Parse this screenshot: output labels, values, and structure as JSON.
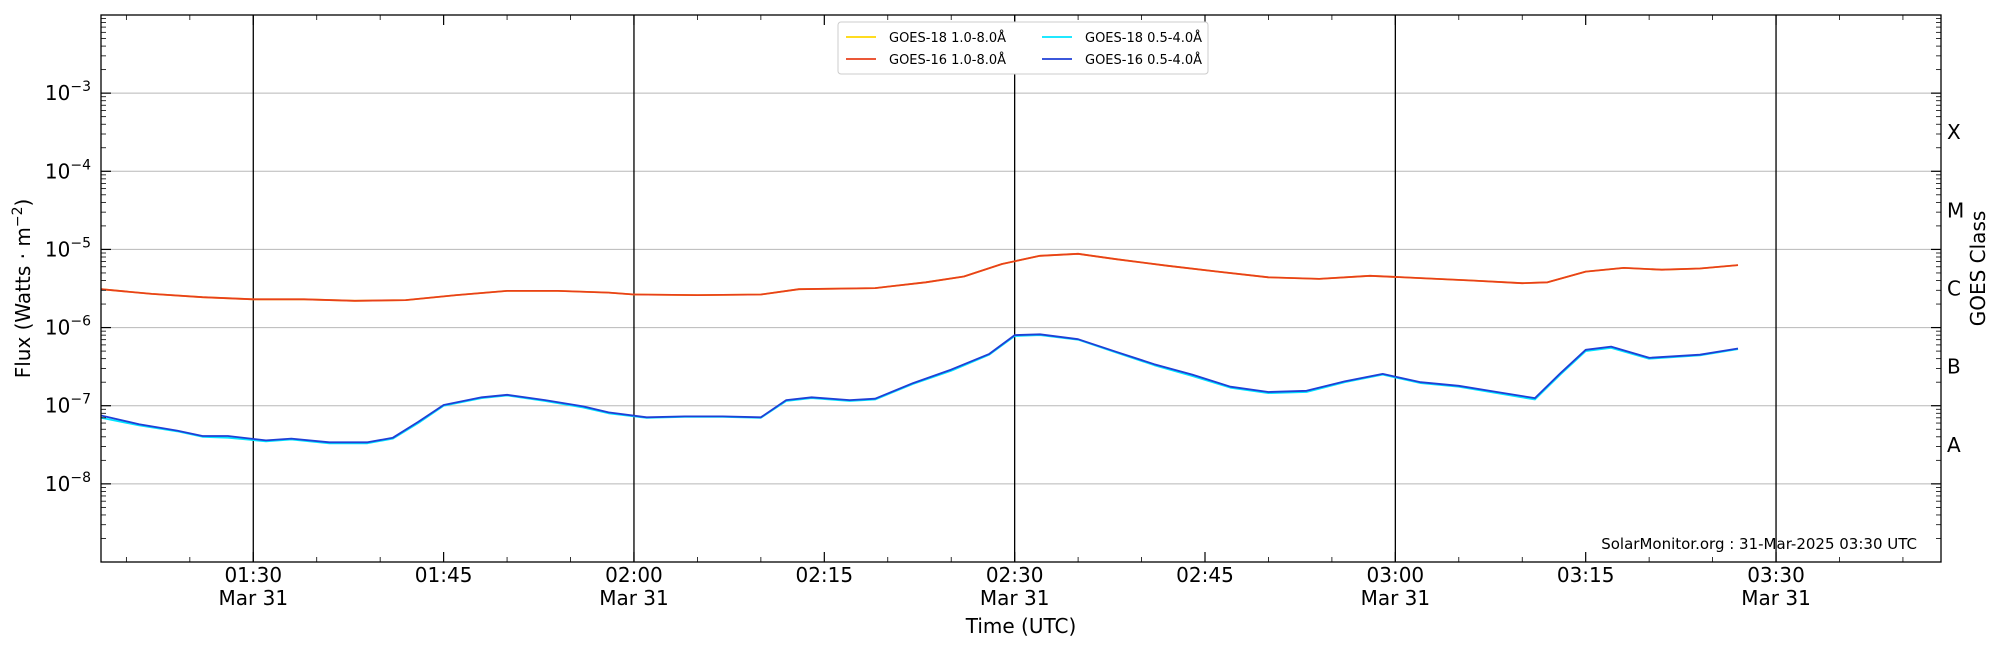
{
  "chart_data": {
    "type": "line",
    "xlabel": "Time (UTC)",
    "ylabel_main": "Flux (Watts · m",
    "ylabel_sup": "−2",
    "ylabel_tail": ")",
    "ylabel_right": "GOES Class",
    "yscale": "log",
    "xlim": [
      "01:18",
      "03:43"
    ],
    "ylim": [
      1e-09,
      0.01
    ],
    "x_ticks": [
      {
        "t": "01:30",
        "label": "01:30",
        "sub": "Mar 31"
      },
      {
        "t": "01:45",
        "label": "01:45",
        "sub": ""
      },
      {
        "t": "02:00",
        "label": "02:00",
        "sub": "Mar 31"
      },
      {
        "t": "02:15",
        "label": "02:15",
        "sub": ""
      },
      {
        "t": "02:30",
        "label": "02:30",
        "sub": "Mar 31"
      },
      {
        "t": "02:45",
        "label": "02:45",
        "sub": ""
      },
      {
        "t": "03:00",
        "label": "03:00",
        "sub": "Mar 31"
      },
      {
        "t": "03:15",
        "label": "03:15",
        "sub": ""
      },
      {
        "t": "03:30",
        "label": "03:30",
        "sub": "Mar 31"
      }
    ],
    "y_ticks": [
      {
        "v": 1e-08,
        "base": "10",
        "exp": "−8"
      },
      {
        "v": 1e-07,
        "base": "10",
        "exp": "−7"
      },
      {
        "v": 1e-06,
        "base": "10",
        "exp": "−6"
      },
      {
        "v": 1e-05,
        "base": "10",
        "exp": "−5"
      },
      {
        "v": 0.0001,
        "base": "10",
        "exp": "−4"
      },
      {
        "v": 0.001,
        "base": "10",
        "exp": "−3"
      }
    ],
    "goes_classes": [
      {
        "label": "A",
        "v": 3.16e-08
      },
      {
        "label": "B",
        "v": 3.16e-07
      },
      {
        "label": "C",
        "v": 3.16e-06
      },
      {
        "label": "M",
        "v": 3.16e-05
      },
      {
        "label": "X",
        "v": 0.000316
      }
    ],
    "vlines": [
      "01:30",
      "02:00",
      "02:30",
      "03:00",
      "03:30"
    ],
    "grid": true,
    "legend_position": "top-center",
    "credit": "SolarMonitor.org : 31-Mar-2025 03:30 UTC",
    "series": [
      {
        "name": "GOES-18 1.0-8.0Å",
        "color": "#ffd700",
        "points": [
          [
            "01:18",
            3.1e-06
          ],
          [
            "01:22",
            2.7e-06
          ],
          [
            "01:26",
            2.45e-06
          ],
          [
            "01:30",
            2.3e-06
          ],
          [
            "01:34",
            2.3e-06
          ],
          [
            "01:38",
            2.2e-06
          ],
          [
            "01:42",
            2.25e-06
          ],
          [
            "01:46",
            2.6e-06
          ],
          [
            "01:50",
            2.95e-06
          ],
          [
            "01:54",
            2.95e-06
          ],
          [
            "01:58",
            2.8e-06
          ],
          [
            "02:00",
            2.65e-06
          ],
          [
            "02:05",
            2.6e-06
          ],
          [
            "02:10",
            2.65e-06
          ],
          [
            "02:13",
            3.1e-06
          ],
          [
            "02:19",
            3.2e-06
          ],
          [
            "02:23",
            3.8e-06
          ],
          [
            "02:26",
            4.5e-06
          ],
          [
            "02:29",
            6.5e-06
          ],
          [
            "02:32",
            8.3e-06
          ],
          [
            "02:35",
            8.8e-06
          ],
          [
            "02:38",
            7.5e-06
          ],
          [
            "02:42",
            6.2e-06
          ],
          [
            "02:46",
            5.2e-06
          ],
          [
            "02:50",
            4.4e-06
          ],
          [
            "02:54",
            4.2e-06
          ],
          [
            "02:58",
            4.6e-06
          ],
          [
            "03:02",
            4.3e-06
          ],
          [
            "03:06",
            4e-06
          ],
          [
            "03:10",
            3.7e-06
          ],
          [
            "03:12",
            3.8e-06
          ],
          [
            "03:15",
            5.2e-06
          ],
          [
            "03:18",
            5.8e-06
          ],
          [
            "03:21",
            5.5e-06
          ],
          [
            "03:24",
            5.7e-06
          ],
          [
            "03:27",
            6.3e-06
          ]
        ]
      },
      {
        "name": "GOES-16 1.0-8.0Å",
        "color": "#e8401c",
        "points": [
          [
            "01:18",
            3.1e-06
          ],
          [
            "01:22",
            2.7e-06
          ],
          [
            "01:26",
            2.45e-06
          ],
          [
            "01:30",
            2.3e-06
          ],
          [
            "01:34",
            2.3e-06
          ],
          [
            "01:38",
            2.2e-06
          ],
          [
            "01:42",
            2.25e-06
          ],
          [
            "01:46",
            2.6e-06
          ],
          [
            "01:50",
            2.95e-06
          ],
          [
            "01:54",
            2.95e-06
          ],
          [
            "01:58",
            2.8e-06
          ],
          [
            "02:00",
            2.65e-06
          ],
          [
            "02:05",
            2.6e-06
          ],
          [
            "02:10",
            2.65e-06
          ],
          [
            "02:13",
            3.1e-06
          ],
          [
            "02:19",
            3.2e-06
          ],
          [
            "02:23",
            3.8e-06
          ],
          [
            "02:26",
            4.5e-06
          ],
          [
            "02:29",
            6.5e-06
          ],
          [
            "02:32",
            8.3e-06
          ],
          [
            "02:35",
            8.8e-06
          ],
          [
            "02:38",
            7.5e-06
          ],
          [
            "02:42",
            6.2e-06
          ],
          [
            "02:46",
            5.2e-06
          ],
          [
            "02:50",
            4.4e-06
          ],
          [
            "02:54",
            4.2e-06
          ],
          [
            "02:58",
            4.6e-06
          ],
          [
            "03:02",
            4.3e-06
          ],
          [
            "03:06",
            4e-06
          ],
          [
            "03:10",
            3.7e-06
          ],
          [
            "03:12",
            3.8e-06
          ],
          [
            "03:15",
            5.2e-06
          ],
          [
            "03:18",
            5.8e-06
          ],
          [
            "03:21",
            5.5e-06
          ],
          [
            "03:24",
            5.7e-06
          ],
          [
            "03:27",
            6.3e-06
          ]
        ]
      },
      {
        "name": "GOES-18 0.5-4.0Å",
        "color": "#00e5ff",
        "points": [
          [
            "01:18",
            7e-08
          ],
          [
            "01:21",
            5.6e-08
          ],
          [
            "01:24",
            4.7e-08
          ],
          [
            "01:26",
            4e-08
          ],
          [
            "01:28",
            3.9e-08
          ],
          [
            "01:31",
            3.5e-08
          ],
          [
            "01:33",
            3.7e-08
          ],
          [
            "01:36",
            3.3e-08
          ],
          [
            "01:39",
            3.3e-08
          ],
          [
            "01:41",
            3.8e-08
          ],
          [
            "01:43",
            6e-08
          ],
          [
            "01:45",
            1e-07
          ],
          [
            "01:48",
            1.25e-07
          ],
          [
            "01:50",
            1.35e-07
          ],
          [
            "01:53",
            1.15e-07
          ],
          [
            "01:56",
            9.5e-08
          ],
          [
            "01:58",
            8e-08
          ],
          [
            "02:01",
            7e-08
          ],
          [
            "02:04",
            7.2e-08
          ],
          [
            "02:07",
            7.2e-08
          ],
          [
            "02:10",
            7e-08
          ],
          [
            "02:12",
            1.15e-07
          ],
          [
            "02:14",
            1.25e-07
          ],
          [
            "02:17",
            1.15e-07
          ],
          [
            "02:19",
            1.2e-07
          ],
          [
            "02:22",
            1.9e-07
          ],
          [
            "02:25",
            2.8e-07
          ],
          [
            "02:28",
            4.5e-07
          ],
          [
            "02:30",
            7.8e-07
          ],
          [
            "02:32",
            8e-07
          ],
          [
            "02:35",
            7e-07
          ],
          [
            "02:38",
            4.8e-07
          ],
          [
            "02:41",
            3.3e-07
          ],
          [
            "02:44",
            2.4e-07
          ],
          [
            "02:47",
            1.7e-07
          ],
          [
            "02:50",
            1.45e-07
          ],
          [
            "02:53",
            1.5e-07
          ],
          [
            "02:56",
            2e-07
          ],
          [
            "02:59",
            2.5e-07
          ],
          [
            "03:02",
            1.95e-07
          ],
          [
            "03:05",
            1.75e-07
          ],
          [
            "03:08",
            1.45e-07
          ],
          [
            "03:11",
            1.2e-07
          ],
          [
            "03:13",
            2.5e-07
          ],
          [
            "03:15",
            5e-07
          ],
          [
            "03:17",
            5.5e-07
          ],
          [
            "03:20",
            4e-07
          ],
          [
            "03:24",
            4.4e-07
          ],
          [
            "03:27",
            5.3e-07
          ]
        ]
      },
      {
        "name": "GOES-16 0.5-4.0Å",
        "color": "#1f3fd6",
        "points": [
          [
            "01:18",
            7.5e-08
          ],
          [
            "01:21",
            5.8e-08
          ],
          [
            "01:24",
            4.8e-08
          ],
          [
            "01:26",
            4.1e-08
          ],
          [
            "01:28",
            4.1e-08
          ],
          [
            "01:31",
            3.6e-08
          ],
          [
            "01:33",
            3.8e-08
          ],
          [
            "01:36",
            3.4e-08
          ],
          [
            "01:39",
            3.4e-08
          ],
          [
            "01:41",
            3.9e-08
          ],
          [
            "01:43",
            6.2e-08
          ],
          [
            "01:45",
            1.02e-07
          ],
          [
            "01:48",
            1.28e-07
          ],
          [
            "01:50",
            1.38e-07
          ],
          [
            "01:53",
            1.18e-07
          ],
          [
            "01:56",
            9.8e-08
          ],
          [
            "01:58",
            8.2e-08
          ],
          [
            "02:01",
            7.1e-08
          ],
          [
            "02:04",
            7.3e-08
          ],
          [
            "02:07",
            7.3e-08
          ],
          [
            "02:10",
            7.1e-08
          ],
          [
            "02:12",
            1.18e-07
          ],
          [
            "02:14",
            1.28e-07
          ],
          [
            "02:17",
            1.18e-07
          ],
          [
            "02:19",
            1.23e-07
          ],
          [
            "02:22",
            1.95e-07
          ],
          [
            "02:25",
            2.9e-07
          ],
          [
            "02:28",
            4.6e-07
          ],
          [
            "02:30",
            8e-07
          ],
          [
            "02:32",
            8.2e-07
          ],
          [
            "02:35",
            7.1e-07
          ],
          [
            "02:38",
            4.9e-07
          ],
          [
            "02:41",
            3.4e-07
          ],
          [
            "02:44",
            2.5e-07
          ],
          [
            "02:47",
            1.75e-07
          ],
          [
            "02:50",
            1.5e-07
          ],
          [
            "02:53",
            1.55e-07
          ],
          [
            "02:56",
            2.05e-07
          ],
          [
            "02:59",
            2.55e-07
          ],
          [
            "03:02",
            2e-07
          ],
          [
            "03:05",
            1.8e-07
          ],
          [
            "03:08",
            1.5e-07
          ],
          [
            "03:11",
            1.25e-07
          ],
          [
            "03:13",
            2.6e-07
          ],
          [
            "03:15",
            5.2e-07
          ],
          [
            "03:17",
            5.7e-07
          ],
          [
            "03:20",
            4.1e-07
          ],
          [
            "03:24",
            4.5e-07
          ],
          [
            "03:27",
            5.4e-07
          ]
        ]
      }
    ]
  }
}
